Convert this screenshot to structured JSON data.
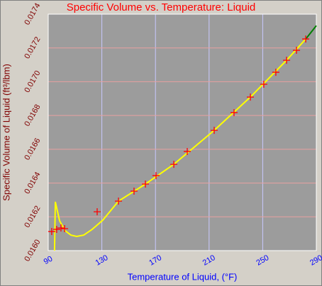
{
  "chart_data": {
    "type": "line",
    "title": "Specific Volume vs. Temperature: Liquid",
    "x_label": "Temperature of Liquid, (°F)",
    "y_label": "Specific Volume of Liquid (ft³/lbm)",
    "xlim": [
      90,
      290
    ],
    "xticks": [
      90,
      130,
      170,
      210,
      250,
      290
    ],
    "ylim": [
      0.016,
      0.0174
    ],
    "yticks": [
      {
        "value": 0.016,
        "label": "0.0160"
      },
      0.0162,
      0.0164,
      0.0166,
      0.0168,
      {
        "value": 0.017,
        "label": "0.0170"
      },
      0.0172,
      0.0174
    ],
    "grid": true,
    "series": [
      {
        "color": "#ffff00",
        "marker": "none",
        "x": [
          94.7,
          95.3,
          98.5,
          102.7,
          106.9,
          111.2,
          116.5,
          122.8,
          130.7,
          142.4,
          162.5,
          183.7,
          213.8,
          240.8,
          267.8,
          282.1
        ],
        "values": [
          0.016,
          0.016289,
          0.016176,
          0.016117,
          0.016092,
          0.016084,
          0.016092,
          0.016126,
          0.01618,
          0.016293,
          0.016394,
          0.016511,
          0.016712,
          0.016909,
          0.017127,
          0.017253
        ]
      },
      {
        "color": "#008000",
        "marker": "none",
        "x": [
          282.1,
          290
        ],
        "values": [
          0.017253,
          0.017332
        ]
      },
      {
        "color": "#ff0000",
        "marker": "plus",
        "x": [
          92.6,
          96.3,
          99.5,
          102.2,
          126.5,
          142.4,
          154.0,
          162.5,
          170.4,
          183.7,
          193.7,
          213.8,
          228.6,
          240.8,
          250.8,
          259.8,
          267.8,
          275.2,
          282.1
        ],
        "values": [
          0.016113,
          0.016126,
          0.016134,
          0.01613,
          0.01623,
          0.016293,
          0.016352,
          0.016394,
          0.016444,
          0.016511,
          0.016587,
          0.016712,
          0.016817,
          0.016909,
          0.016985,
          0.017056,
          0.017127,
          0.017186,
          0.017253
        ]
      }
    ]
  }
}
